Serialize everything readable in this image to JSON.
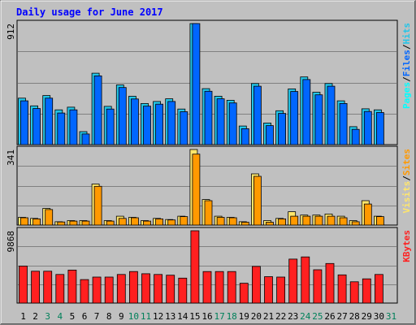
{
  "chart_data": {
    "type": "bar",
    "title": "Daily usage for June 2017",
    "categories": [
      "1",
      "2",
      "3",
      "4",
      "5",
      "6",
      "7",
      "8",
      "9",
      "10",
      "11",
      "12",
      "13",
      "14",
      "15",
      "16",
      "17",
      "18",
      "19",
      "20",
      "21",
      "22",
      "23",
      "24",
      "25",
      "26",
      "27",
      "28",
      "29",
      "30",
      "31"
    ],
    "weekend_days": [
      "3",
      "4",
      "10",
      "11",
      "17",
      "18",
      "24",
      "25",
      "31"
    ],
    "panels": [
      {
        "name": "pages_files_hits",
        "max_label": "912",
        "y_label_parts": [
          "Pages",
          "/",
          "Files",
          "/",
          "Hits"
        ],
        "series": [
          {
            "name": "Hits",
            "values": [
              350,
              292,
              370,
              262,
              282,
              98,
              538,
              288,
              450,
              364,
              310,
              325,
              345,
              268,
              912,
              422,
              365,
              334,
              140,
              460,
              163,
              255,
              420,
              510,
              395,
              460,
              330,
              135,
              270,
              262,
              0
            ]
          },
          {
            "name": "Files",
            "values": [
              330,
              272,
              350,
              238,
              262,
              80,
              518,
              268,
              430,
              344,
              290,
              305,
              325,
              248,
              912,
              402,
              345,
              314,
              120,
              440,
              143,
              235,
              400,
              490,
              375,
              440,
              310,
              115,
              250,
              242,
              0
            ]
          },
          {
            "name": "Pages",
            "values": [
              0,
              0,
              0,
              0,
              0,
              0,
              0,
              0,
              0,
              0,
              0,
              0,
              0,
              0,
              0,
              0,
              0,
              0,
              0,
              0,
              0,
              0,
              0,
              0,
              0,
              0,
              0,
              0,
              0,
              0,
              0
            ]
          }
        ]
      },
      {
        "name": "visits_sites",
        "max_label": "341",
        "y_label_parts": [
          "Visits",
          "/",
          "Sites"
        ],
        "series": [
          {
            "name": "Visits",
            "values": [
              35,
              30,
              75,
              15,
              20,
              20,
              185,
              20,
              40,
              35,
              20,
              30,
              25,
              40,
              341,
              115,
              40,
              35,
              15,
              231,
              20,
              30,
              60,
              45,
              45,
              50,
              40,
              20,
              110,
              40,
              0
            ]
          },
          {
            "name": "Sites",
            "values": [
              33,
              28,
              70,
              14,
              18,
              18,
              175,
              18,
              30,
              33,
              18,
              28,
              23,
              38,
              320,
              110,
              35,
              33,
              13,
              220,
              13,
              28,
              40,
              40,
              40,
              40,
              33,
              15,
              95,
              38,
              0
            ]
          }
        ]
      },
      {
        "name": "kbytes",
        "max_label": "9868",
        "y_label_parts": [
          "KBytes"
        ],
        "series": [
          {
            "name": "KBytes",
            "values": [
              5050,
              4350,
              4350,
              3900,
              4500,
              3200,
              3550,
              3550,
              3900,
              4300,
              4000,
              3900,
              3800,
              3400,
              9868,
              4300,
              4300,
              4300,
              2700,
              5000,
              3600,
              3550,
              6000,
              6300,
              4550,
              5400,
              3850,
              2900,
              3300,
              3900,
              0
            ]
          }
        ]
      }
    ],
    "colors": {
      "Pages": "#00ffff",
      "Files": "#0066ff",
      "Hits": "#22c5e8",
      "Visits": "#ffe66b",
      "Sites": "#ff9900",
      "KBytes": "#ff2020",
      "background": "#c0c0c0",
      "title": "#0000ff",
      "label_weekday": "#000000",
      "label_weekend": "#00805a"
    },
    "grid": true
  }
}
